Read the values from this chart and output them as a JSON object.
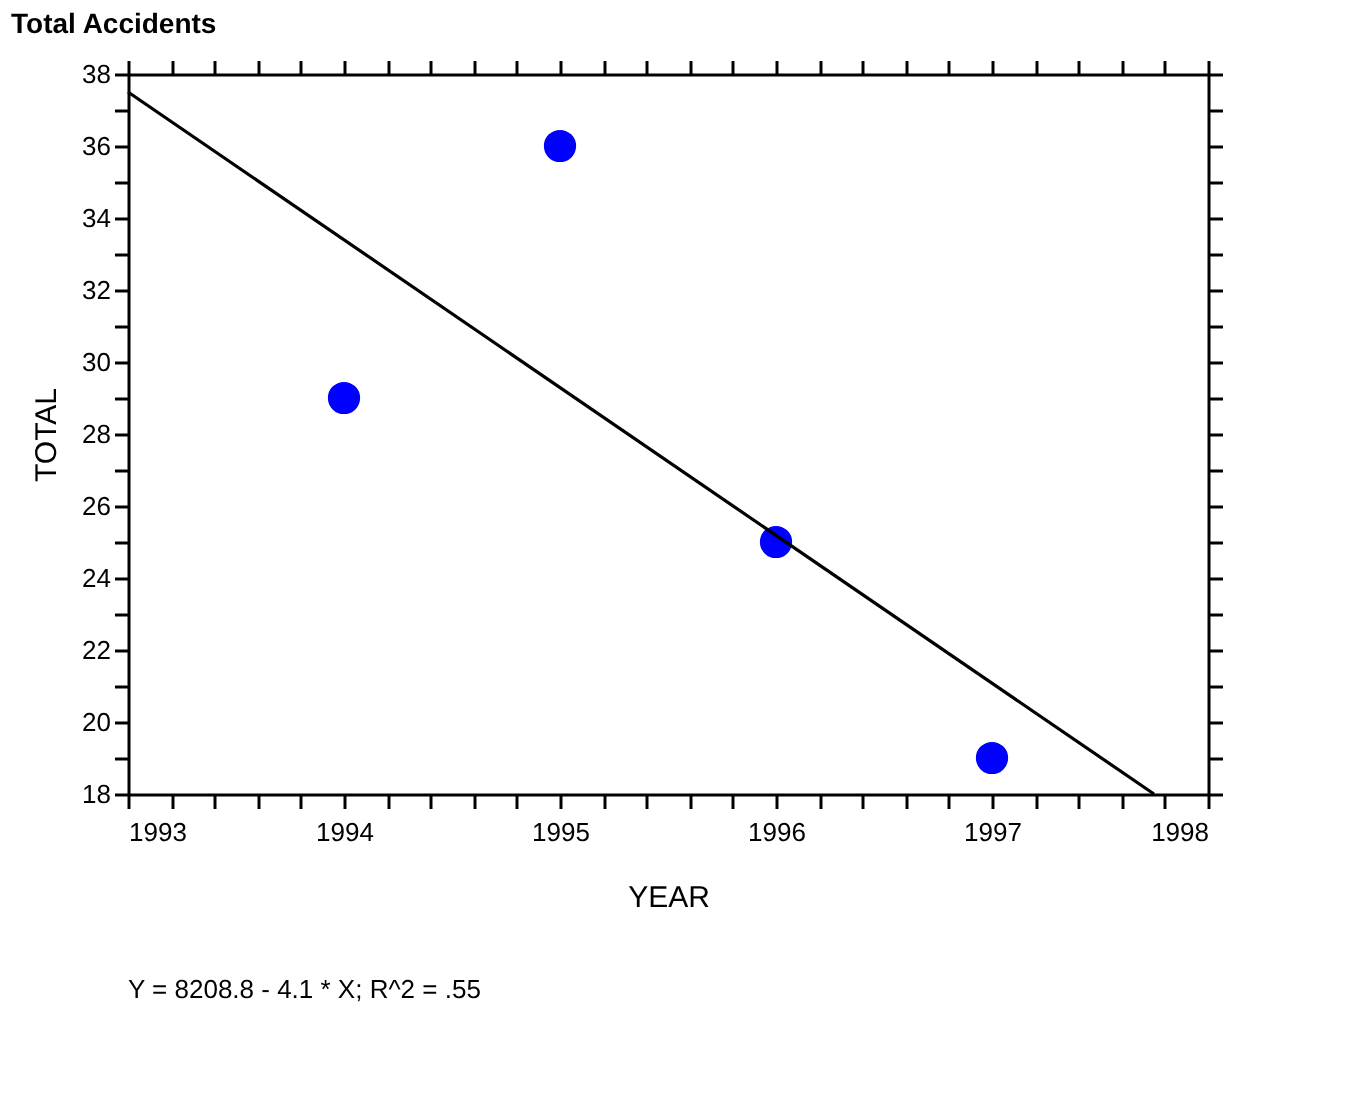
{
  "chart_data": {
    "type": "scatter",
    "title": "Total Accidents",
    "xlabel": "YEAR",
    "ylabel": "TOTAL",
    "series": [
      {
        "type": "scatter",
        "color": "#0000ff",
        "x": [
          1994,
          1995,
          1996,
          1997
        ],
        "values": [
          29,
          36,
          25,
          19
        ],
        "marker": "circle"
      },
      {
        "type": "line",
        "color": "#000000",
        "x": [
          1993,
          1997.75
        ],
        "values": [
          37.5,
          18.0
        ],
        "line_style": "solid",
        "marker": "none"
      }
    ],
    "xlim": [
      1993,
      1998
    ],
    "xticks": [
      1993,
      {
        "value": 1993.2,
        "label": null
      },
      {
        "value": 1993.4,
        "label": null
      },
      {
        "value": 1993.6,
        "label": null
      },
      {
        "value": 1993.8,
        "label": null
      },
      1994,
      {
        "value": 1994.2,
        "label": null
      },
      {
        "value": 1994.4,
        "label": null
      },
      {
        "value": 1994.6,
        "label": null
      },
      {
        "value": 1994.8,
        "label": null
      },
      1995,
      {
        "value": 1995.2,
        "label": null
      },
      {
        "value": 1995.4,
        "label": null
      },
      {
        "value": 1995.6,
        "label": null
      },
      {
        "value": 1995.8,
        "label": null
      },
      1996,
      {
        "value": 1996.2,
        "label": null
      },
      {
        "value": 1996.4,
        "label": null
      },
      {
        "value": 1996.6,
        "label": null
      },
      {
        "value": 1996.8,
        "label": null
      },
      1997,
      {
        "value": 1997.2,
        "label": null
      },
      {
        "value": 1997.4,
        "label": null
      },
      {
        "value": 1997.6,
        "label": null
      },
      {
        "value": 1997.8,
        "label": null
      },
      1998
    ],
    "ylim": [
      18,
      38
    ],
    "yticks": [
      18,
      {
        "value": 19,
        "label": null
      },
      20,
      {
        "value": 21,
        "label": null
      },
      22,
      {
        "value": 23,
        "label": null
      },
      24,
      {
        "value": 25,
        "label": null
      },
      26,
      {
        "value": 27,
        "label": null
      },
      28,
      {
        "value": 29,
        "label": null
      },
      30,
      {
        "value": 31,
        "label": null
      },
      32,
      {
        "value": 33,
        "label": null
      },
      34,
      {
        "value": 35,
        "label": null
      },
      36,
      {
        "value": 37,
        "label": null
      },
      38
    ],
    "grid": false,
    "annotations": [
      "Y = 8208.8 - 4.1 * X; R^2 = .55"
    ]
  }
}
